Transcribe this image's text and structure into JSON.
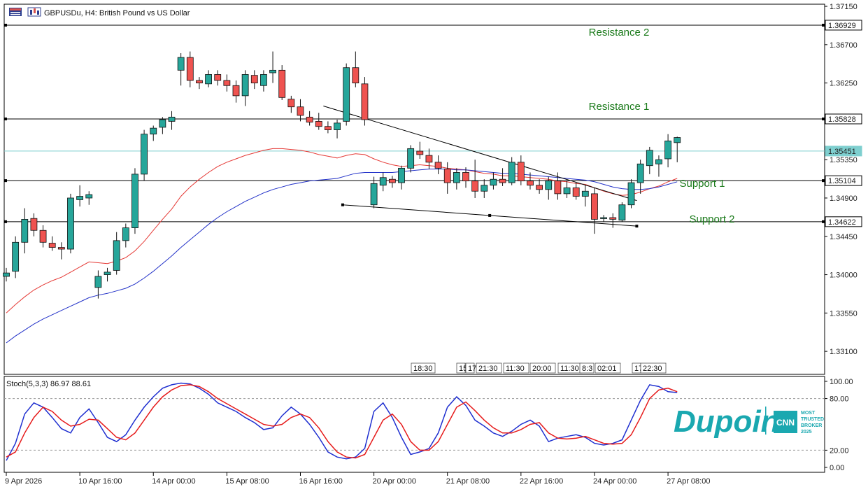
{
  "header": {
    "title": "GBPUSDu, H4:  British Pound vs US Dollar"
  },
  "colors": {
    "bull": "#26a69a",
    "bear": "#ef5350",
    "ma_fast": "#e53935",
    "ma_slow": "#2231c8",
    "stoch_main": "#1f2fd0",
    "stoch_signal": "#e61b1b",
    "sr_label": "#1a7a1a",
    "current_price_line": "#7ecfcf",
    "brand": "#1aa8b0"
  },
  "brand": {
    "name": "Dupoin",
    "badge_lines": [
      "MOST",
      "TRUSTED",
      "BROKER",
      "2025"
    ],
    "badge_logo": "CNN"
  },
  "chart_data": {
    "type": "candlestick",
    "symbol": "GBPUSDu",
    "timeframe": "H4",
    "price_axis": {
      "range": [
        1.3283,
        1.37175
      ],
      "tick_labels": [
        "1.37150",
        "1.36700",
        "1.36250",
        "1.35350",
        "1.34900",
        "1.34450",
        "1.34000",
        "1.33550",
        "1.33100"
      ],
      "tick_values": [
        1.3715,
        1.367,
        1.3625,
        1.3535,
        1.349,
        1.3445,
        1.34,
        1.3355,
        1.331
      ]
    },
    "levels": [
      {
        "label": "Resistance 2",
        "price": 1.36929,
        "price_label": "1.36929",
        "style": "black"
      },
      {
        "label": "Resistance 1",
        "price": 1.35828,
        "price_label": "1.35828",
        "style": "black"
      },
      {
        "label": "",
        "price": 1.35451,
        "price_label": "1.35451",
        "style": "current"
      },
      {
        "label": "Support 1",
        "price": 1.35104,
        "price_label": "1.35104",
        "style": "black"
      },
      {
        "label": "Support 2",
        "price": 1.34622,
        "price_label": "1.34622",
        "style": "black"
      }
    ],
    "time_axis_labels": [
      "9 Apr 2026",
      "10 Apr 16:00",
      "14 Apr 00:00",
      "15 Apr 08:00",
      "16 Apr 16:00",
      "20 Apr 00:00",
      "21 Apr 08:00",
      "22 Apr 16:00",
      "24 Apr 00:00",
      "27 Apr 08:00"
    ],
    "time_axis_label_bars": [
      0,
      8,
      16,
      24,
      32,
      40,
      48,
      56,
      64,
      72
    ],
    "time_badges": [
      "18:30",
      "15",
      "17",
      "21:30",
      "11:30",
      "20:00",
      "11:30",
      "8:3",
      "02:01",
      "17",
      "22:30"
    ],
    "candles": [
      [
        1.3398,
        1.3408,
        1.3392,
        1.3402
      ],
      [
        1.3404,
        1.3445,
        1.3396,
        1.3438
      ],
      [
        1.3438,
        1.3478,
        1.3425,
        1.3465
      ],
      [
        1.3466,
        1.3472,
        1.3445,
        1.3452
      ],
      [
        1.3452,
        1.3458,
        1.3432,
        1.3438
      ],
      [
        1.3437,
        1.3445,
        1.3428,
        1.3432
      ],
      [
        1.3432,
        1.3438,
        1.3418,
        1.343
      ],
      [
        1.343,
        1.3495,
        1.3425,
        1.349
      ],
      [
        1.3488,
        1.3505,
        1.348,
        1.3492
      ],
      [
        1.349,
        1.3498,
        1.3482,
        1.3494
      ],
      [
        1.3385,
        1.3405,
        1.3372,
        1.3398
      ],
      [
        1.34,
        1.3408,
        1.3392,
        1.3403
      ],
      [
        1.3405,
        1.345,
        1.34,
        1.344
      ],
      [
        1.344,
        1.346,
        1.3432,
        1.3455
      ],
      [
        1.3455,
        1.3525,
        1.3448,
        1.3518
      ],
      [
        1.3518,
        1.357,
        1.351,
        1.3565
      ],
      [
        1.3565,
        1.3575,
        1.3557,
        1.3572
      ],
      [
        1.3573,
        1.3585,
        1.3565,
        1.3582
      ],
      [
        1.358,
        1.3592,
        1.357,
        1.3585
      ],
      [
        1.364,
        1.366,
        1.3622,
        1.3655
      ],
      [
        1.3655,
        1.3662,
        1.362,
        1.3628
      ],
      [
        1.3628,
        1.3632,
        1.3618,
        1.3625
      ],
      [
        1.3624,
        1.364,
        1.362,
        1.3635
      ],
      [
        1.3635,
        1.364,
        1.3622,
        1.3628
      ],
      [
        1.3628,
        1.3635,
        1.3615,
        1.3622
      ],
      [
        1.3622,
        1.3628,
        1.3602,
        1.361
      ],
      [
        1.361,
        1.364,
        1.3598,
        1.3635
      ],
      [
        1.3634,
        1.364,
        1.3618,
        1.3625
      ],
      [
        1.3622,
        1.364,
        1.3615,
        1.3635
      ],
      [
        1.3637,
        1.3662,
        1.3625,
        1.364
      ],
      [
        1.364,
        1.3646,
        1.3605,
        1.3608
      ],
      [
        1.3606,
        1.361,
        1.359,
        1.3597
      ],
      [
        1.3597,
        1.3606,
        1.358,
        1.3587
      ],
      [
        1.3585,
        1.3592,
        1.3575,
        1.3579
      ],
      [
        1.358,
        1.359,
        1.357,
        1.3574
      ],
      [
        1.3574,
        1.358,
        1.3566,
        1.357
      ],
      [
        1.357,
        1.3582,
        1.356,
        1.3578
      ],
      [
        1.358,
        1.3648,
        1.3575,
        1.3643
      ],
      [
        1.3643,
        1.3662,
        1.362,
        1.3625
      ],
      [
        1.3624,
        1.3632,
        1.3575,
        1.3582
      ],
      [
        1.3482,
        1.3515,
        1.3478,
        1.3507
      ],
      [
        1.3505,
        1.352,
        1.3498,
        1.3514
      ],
      [
        1.3512,
        1.3516,
        1.3502,
        1.3508
      ],
      [
        1.3508,
        1.3528,
        1.35,
        1.3525
      ],
      [
        1.3525,
        1.3552,
        1.352,
        1.3548
      ],
      [
        1.3545,
        1.3556,
        1.3536,
        1.3541
      ],
      [
        1.354,
        1.3548,
        1.3524,
        1.3532
      ],
      [
        1.3532,
        1.354,
        1.3518,
        1.3525
      ],
      [
        1.3524,
        1.3532,
        1.3495,
        1.3508
      ],
      [
        1.3508,
        1.3525,
        1.35,
        1.352
      ],
      [
        1.352,
        1.3526,
        1.3502,
        1.351
      ],
      [
        1.351,
        1.3535,
        1.349,
        1.3498
      ],
      [
        1.3498,
        1.3512,
        1.349,
        1.3505
      ],
      [
        1.3505,
        1.352,
        1.35,
        1.3512
      ],
      [
        1.3512,
        1.3525,
        1.3504,
        1.3508
      ],
      [
        1.3508,
        1.3538,
        1.3505,
        1.3532
      ],
      [
        1.3532,
        1.354,
        1.3505,
        1.351
      ],
      [
        1.351,
        1.352,
        1.35,
        1.3505
      ],
      [
        1.3505,
        1.3512,
        1.3495,
        1.35
      ],
      [
        1.35,
        1.3515,
        1.3488,
        1.351
      ],
      [
        1.351,
        1.352,
        1.3488,
        1.3495
      ],
      [
        1.3495,
        1.351,
        1.349,
        1.3502
      ],
      [
        1.3502,
        1.3508,
        1.3488,
        1.3492
      ],
      [
        1.3492,
        1.3505,
        1.348,
        1.3498
      ],
      [
        1.3495,
        1.3502,
        1.3448,
        1.3465
      ],
      [
        1.3466,
        1.347,
        1.3462,
        1.3467
      ],
      [
        1.3467,
        1.3472,
        1.3455,
        1.3465
      ],
      [
        1.3464,
        1.3485,
        1.3462,
        1.3482
      ],
      [
        1.3482,
        1.3512,
        1.3478,
        1.3508
      ],
      [
        1.3508,
        1.3535,
        1.3495,
        1.353
      ],
      [
        1.3528,
        1.355,
        1.3518,
        1.3546
      ],
      [
        1.353,
        1.354,
        1.3515,
        1.3535
      ],
      [
        1.3536,
        1.3565,
        1.3526,
        1.3557
      ],
      [
        1.3555,
        1.3562,
        1.3532,
        1.3561
      ]
    ],
    "ma_fast": [
      1.3355,
      1.3365,
      1.3374,
      1.3382,
      1.3388,
      1.3393,
      1.3397,
      1.3403,
      1.3409,
      1.3415,
      1.3414,
      1.3413,
      1.3416,
      1.342,
      1.3428,
      1.3439,
      1.3452,
      1.3465,
      1.3477,
      1.3492,
      1.3503,
      1.3512,
      1.352,
      1.3527,
      1.3532,
      1.3536,
      1.354,
      1.3543,
      1.3546,
      1.3548,
      1.3548,
      1.3547,
      1.3546,
      1.3544,
      1.3541,
      1.3539,
      1.3537,
      1.354,
      1.3542,
      1.3541,
      1.3536,
      1.3532,
      1.3529,
      1.3527,
      1.3528,
      1.3529,
      1.3528,
      1.3527,
      1.3525,
      1.3524,
      1.3523,
      1.3521,
      1.3519,
      1.3518,
      1.3516,
      1.3516,
      1.3515,
      1.3514,
      1.3513,
      1.3512,
      1.351,
      1.3509,
      1.3507,
      1.3506,
      1.3502,
      1.3498,
      1.3495,
      1.3493,
      1.3494,
      1.3497,
      1.3501,
      1.3504,
      1.3509,
      1.3513
    ],
    "ma_slow": [
      1.332,
      1.3328,
      1.3335,
      1.3342,
      1.3348,
      1.3353,
      1.3358,
      1.3363,
      1.3368,
      1.3373,
      1.3376,
      1.3378,
      1.3381,
      1.3384,
      1.3389,
      1.3396,
      1.3404,
      1.3413,
      1.3422,
      1.3432,
      1.3441,
      1.345,
      1.3459,
      1.3467,
      1.3474,
      1.348,
      1.3486,
      1.3491,
      1.3496,
      1.35,
      1.3503,
      1.3506,
      1.3508,
      1.351,
      1.3511,
      1.3512,
      1.3513,
      1.3516,
      1.3519,
      1.352,
      1.352,
      1.352,
      1.352,
      1.3521,
      1.3522,
      1.3523,
      1.3524,
      1.3524,
      1.3524,
      1.3523,
      1.3523,
      1.3522,
      1.3521,
      1.352,
      1.3519,
      1.3519,
      1.3518,
      1.3517,
      1.3516,
      1.3515,
      1.3514,
      1.3513,
      1.3512,
      1.3511,
      1.3509,
      1.3506,
      1.3503,
      1.3501,
      1.35,
      1.35,
      1.3501,
      1.3503,
      1.3506,
      1.3509
    ],
    "trendlines": [
      {
        "from_bar": 34.5,
        "from_price": 1.3598,
        "to_bar": 68.6,
        "to_price": 1.3487
      },
      {
        "from_bar": 36.6,
        "from_price": 1.3482,
        "to_bar": 68.6,
        "to_price": 1.3457
      }
    ],
    "stochastic": {
      "label": "Stoch(5,3,3) 86.97 88.61",
      "range": [
        0,
        100
      ],
      "levels": [
        20,
        80
      ],
      "tick_labels": [
        "100.00",
        "80.00",
        "20.00",
        "0.00"
      ],
      "tick_values": [
        100,
        80,
        20,
        0
      ],
      "main": [
        8,
        28,
        62,
        75,
        70,
        58,
        45,
        40,
        58,
        68,
        52,
        35,
        30,
        38,
        55,
        70,
        82,
        92,
        96,
        98,
        97,
        92,
        85,
        75,
        70,
        65,
        58,
        52,
        44,
        46,
        60,
        70,
        62,
        50,
        35,
        18,
        12,
        10,
        12,
        22,
        65,
        75,
        58,
        35,
        15,
        18,
        22,
        40,
        70,
        82,
        72,
        55,
        48,
        40,
        36,
        42,
        50,
        55,
        48,
        30,
        34,
        36,
        38,
        35,
        28,
        26,
        28,
        32,
        55,
        78,
        96,
        94,
        88,
        87
      ],
      "signal": [
        12,
        18,
        40,
        58,
        70,
        65,
        55,
        48,
        50,
        56,
        55,
        45,
        35,
        32,
        40,
        55,
        70,
        82,
        90,
        95,
        96,
        94,
        88,
        80,
        74,
        68,
        62,
        56,
        50,
        48,
        50,
        58,
        62,
        58,
        46,
        30,
        18,
        12,
        11,
        15,
        35,
        55,
        62,
        50,
        30,
        20,
        20,
        30,
        50,
        70,
        76,
        66,
        55,
        46,
        40,
        40,
        44,
        50,
        52,
        40,
        34,
        33,
        34,
        36,
        32,
        28,
        27,
        28,
        38,
        58,
        80,
        90,
        92,
        88
      ]
    }
  }
}
